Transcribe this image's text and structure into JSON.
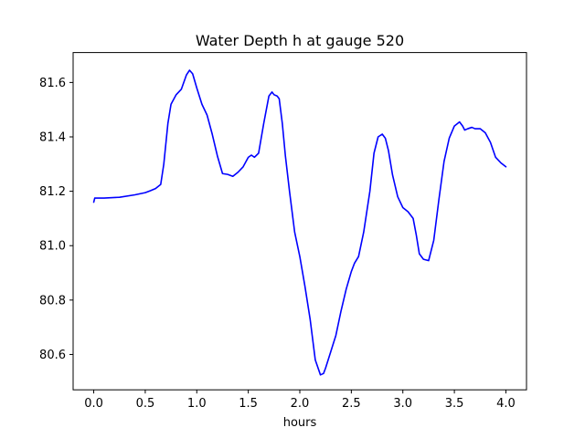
{
  "chart_data": {
    "type": "line",
    "title": "Water Depth h at gauge 520",
    "xlabel": "hours",
    "ylabel": "",
    "xlim": [
      -0.2,
      4.2
    ],
    "ylim": [
      80.47,
      81.71
    ],
    "xticks": [
      0.0,
      0.5,
      1.0,
      1.5,
      2.0,
      2.5,
      3.0,
      3.5,
      4.0
    ],
    "xtick_labels": [
      "0.0",
      "0.5",
      "1.0",
      "1.5",
      "2.0",
      "2.5",
      "3.0",
      "3.5",
      "4.0"
    ],
    "yticks": [
      80.6,
      80.8,
      81.0,
      81.2,
      81.4,
      81.6
    ],
    "ytick_labels": [
      "80.6",
      "80.8",
      "81.0",
      "81.2",
      "81.4",
      "81.6"
    ],
    "grid": false,
    "series": [
      {
        "color": "#0000ff",
        "x": [
          0.0,
          0.01,
          0.1,
          0.25,
          0.4,
          0.5,
          0.55,
          0.6,
          0.65,
          0.68,
          0.72,
          0.75,
          0.8,
          0.85,
          0.9,
          0.93,
          0.96,
          1.0,
          1.05,
          1.1,
          1.15,
          1.2,
          1.25,
          1.3,
          1.35,
          1.4,
          1.45,
          1.5,
          1.53,
          1.56,
          1.6,
          1.65,
          1.7,
          1.73,
          1.75,
          1.78,
          1.8,
          1.83,
          1.86,
          1.9,
          1.95,
          2.0,
          2.05,
          2.1,
          2.15,
          2.2,
          2.23,
          2.25,
          2.3,
          2.35,
          2.4,
          2.45,
          2.5,
          2.53,
          2.57,
          2.62,
          2.68,
          2.72,
          2.76,
          2.8,
          2.83,
          2.86,
          2.9,
          2.95,
          3.0,
          3.05,
          3.1,
          3.13,
          3.16,
          3.2,
          3.25,
          3.3,
          3.35,
          3.4,
          3.45,
          3.5,
          3.55,
          3.58,
          3.6,
          3.63,
          3.67,
          3.7,
          3.75,
          3.8,
          3.85,
          3.9,
          3.95,
          4.0
        ],
        "y": [
          81.16,
          81.175,
          81.175,
          81.178,
          81.187,
          81.195,
          81.202,
          81.21,
          81.225,
          81.3,
          81.45,
          81.52,
          81.555,
          81.575,
          81.628,
          81.645,
          81.632,
          81.58,
          81.52,
          81.48,
          81.41,
          81.33,
          81.265,
          81.262,
          81.255,
          81.27,
          81.29,
          81.325,
          81.333,
          81.325,
          81.34,
          81.45,
          81.55,
          81.565,
          81.555,
          81.55,
          81.54,
          81.45,
          81.33,
          81.2,
          81.05,
          80.96,
          80.85,
          80.73,
          80.58,
          80.525,
          80.53,
          80.55,
          80.61,
          80.67,
          80.76,
          80.84,
          80.905,
          80.935,
          80.96,
          81.05,
          81.2,
          81.34,
          81.4,
          81.41,
          81.395,
          81.35,
          81.26,
          81.18,
          81.14,
          81.125,
          81.1,
          81.04,
          80.97,
          80.95,
          80.945,
          81.02,
          81.17,
          81.31,
          81.395,
          81.44,
          81.455,
          81.44,
          81.425,
          81.43,
          81.435,
          81.43,
          81.43,
          81.415,
          81.38,
          81.325,
          81.305,
          81.29
        ]
      }
    ]
  }
}
